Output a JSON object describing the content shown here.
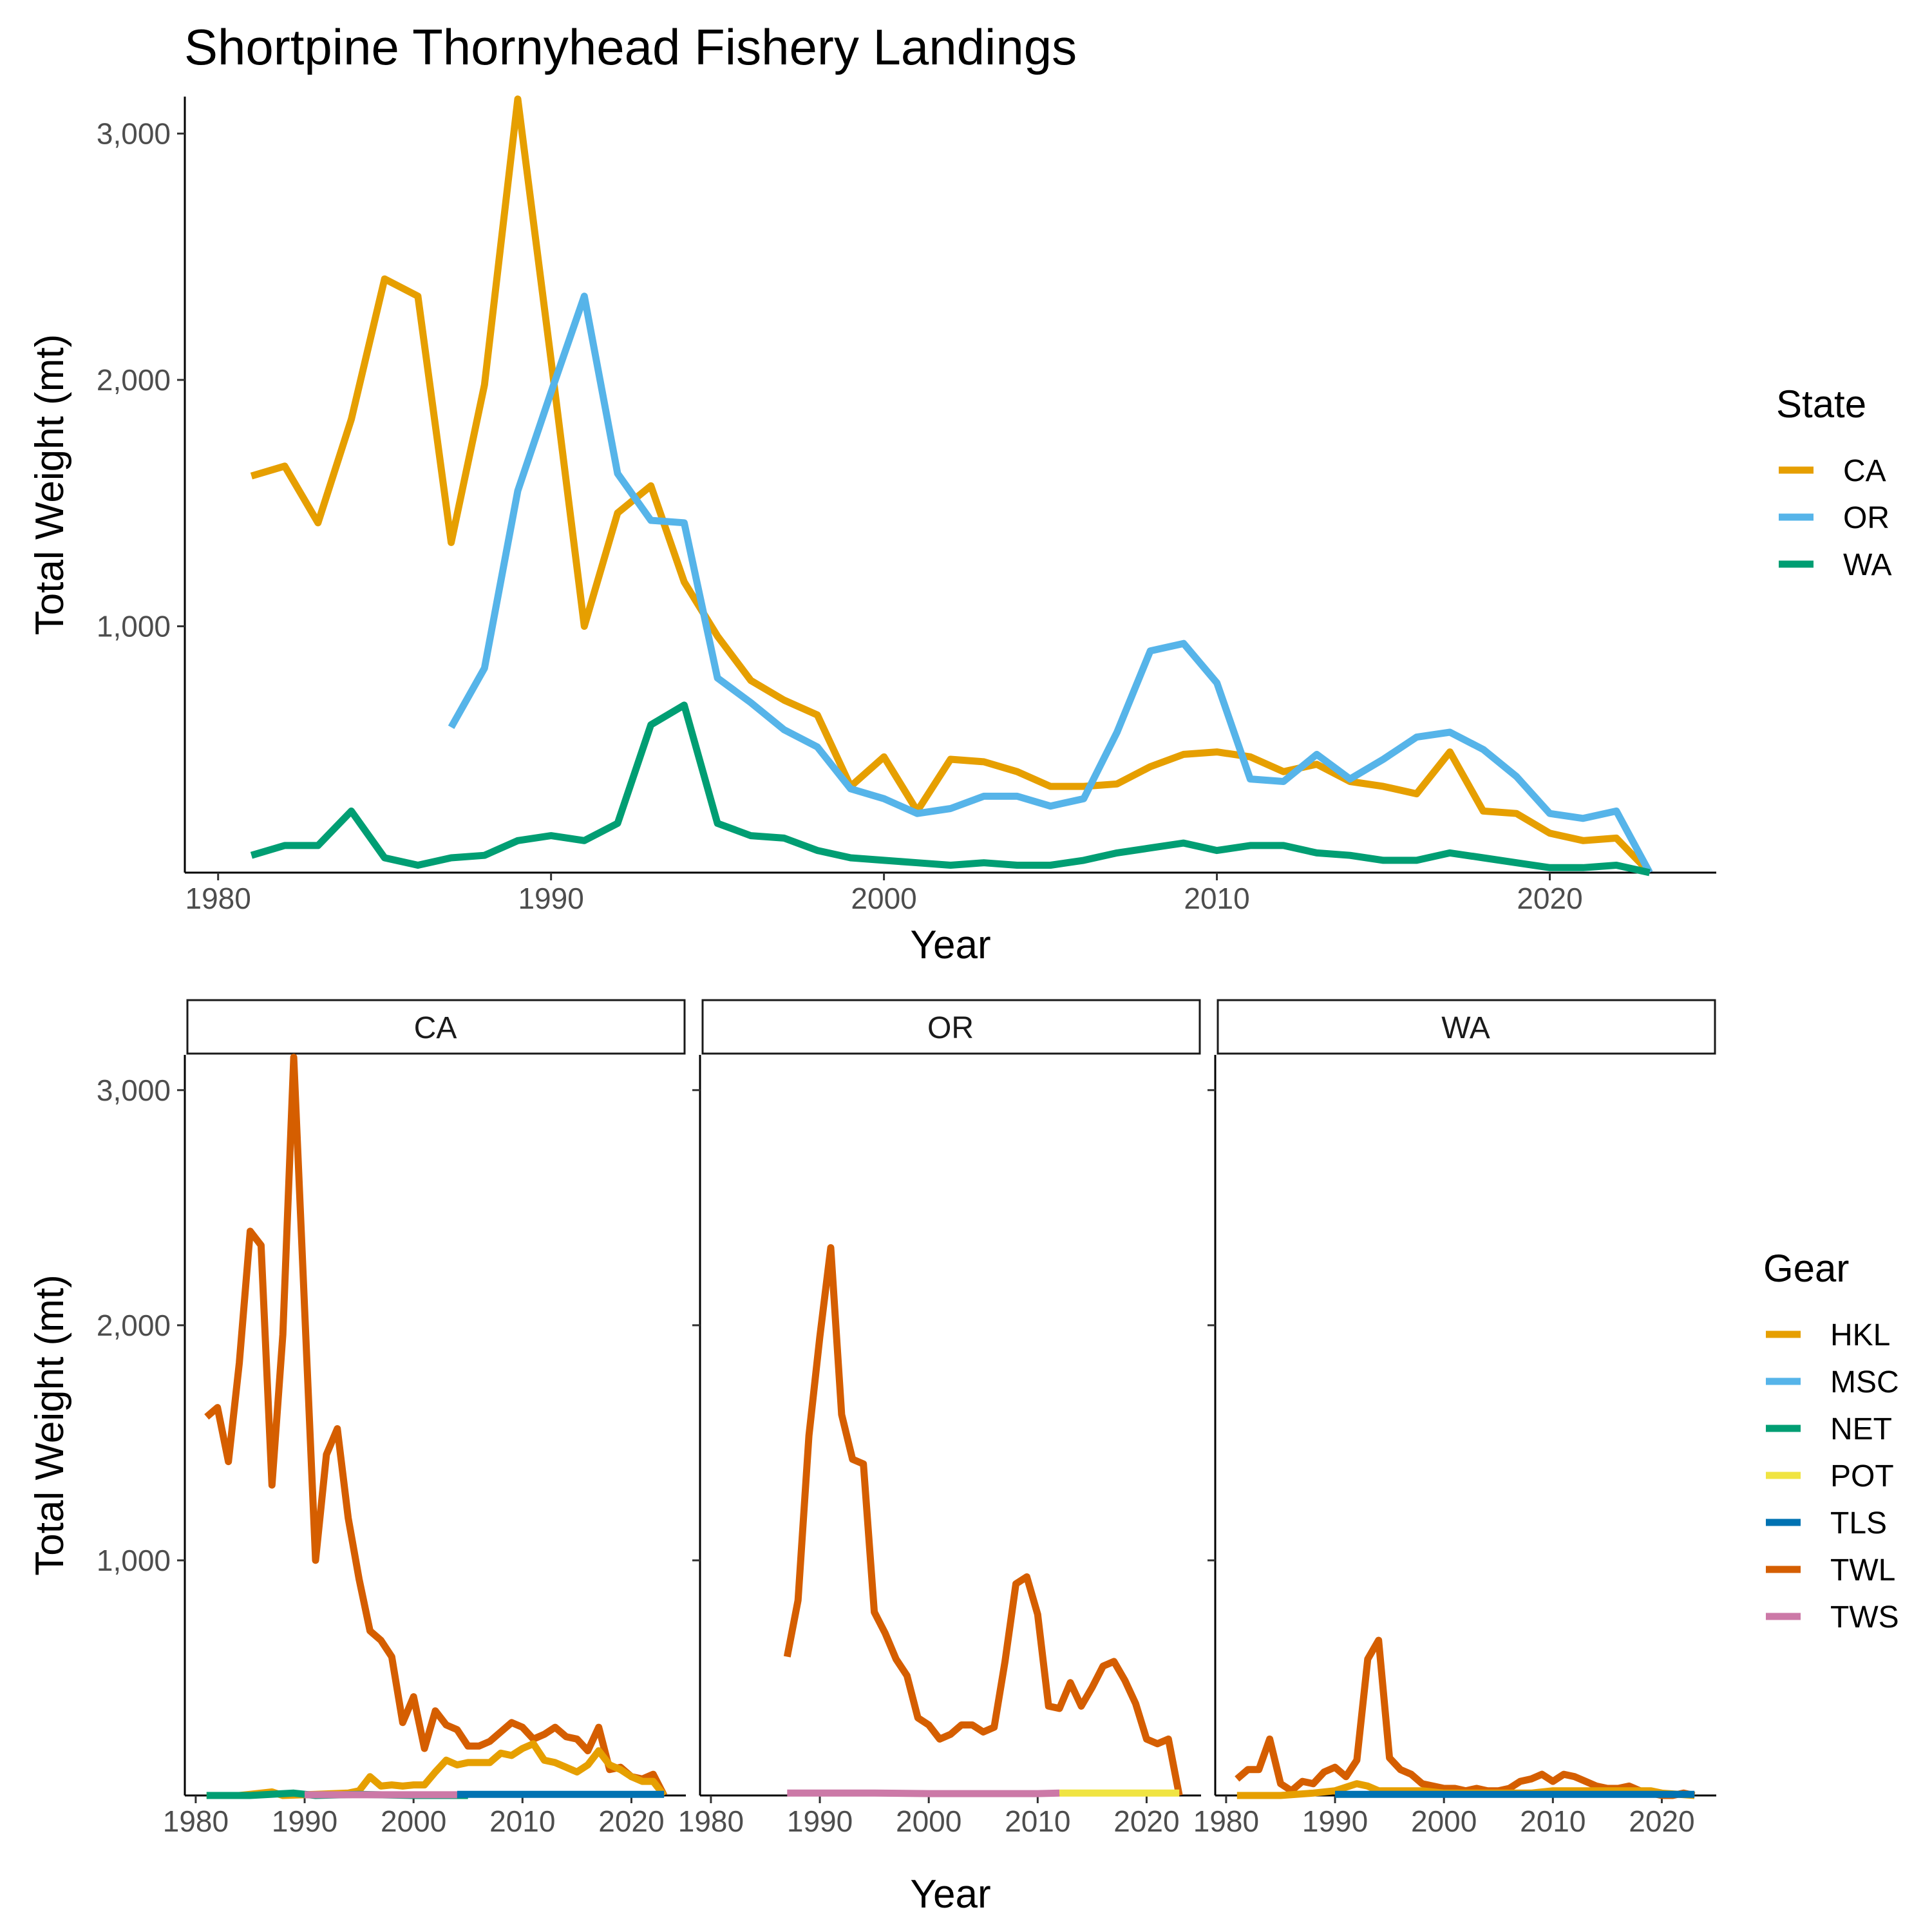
{
  "title": "Shortpine Thornyhead Fishery Landings",
  "colors": {
    "CA": "#E69F00",
    "OR": "#56B4E9",
    "WA": "#009E73",
    "HKL": "#E69F00",
    "MSC": "#56B4E9",
    "NET": "#009E73",
    "POT": "#F0E442",
    "TLS": "#0072B2",
    "TWL": "#D55E00",
    "TWS": "#CC79A7"
  },
  "chart_data": [
    {
      "type": "line",
      "title": "Shortpine Thornyhead Fishery Landings",
      "xlabel": "Year",
      "ylabel": "Total Weight (mt)",
      "xlim": [
        1979,
        2025
      ],
      "ylim": [
        0,
        3150
      ],
      "x_ticks": [
        1980,
        1990,
        2000,
        2010,
        2020
      ],
      "x_tick_labels": [
        "1980",
        "1990",
        "2000",
        "2010",
        "2020"
      ],
      "y_ticks": [
        1000,
        2000,
        3000
      ],
      "y_tick_labels": [
        "1,000",
        "2,000",
        "3,000"
      ],
      "grid": false,
      "legend": {
        "title": "State",
        "position": "right",
        "entries": [
          "CA",
          "OR",
          "WA"
        ]
      },
      "series": [
        {
          "name": "CA",
          "x": [
            1981,
            1982,
            1983,
            1984,
            1985,
            1986,
            1987,
            1988,
            1989,
            1990,
            1991,
            1992,
            1993,
            1994,
            1995,
            1996,
            1997,
            1998,
            1999,
            2000,
            2001,
            2002,
            2003,
            2004,
            2005,
            2006,
            2007,
            2008,
            2009,
            2010,
            2011,
            2012,
            2013,
            2014,
            2015,
            2016,
            2017,
            2018,
            2019,
            2020,
            2021,
            2022,
            2023
          ],
          "y": [
            1610,
            1650,
            1420,
            1840,
            2410,
            2340,
            1340,
            1980,
            3140,
            2080,
            1000,
            1460,
            1570,
            1180,
            960,
            780,
            700,
            640,
            350,
            470,
            250,
            460,
            450,
            410,
            350,
            350,
            360,
            430,
            480,
            490,
            470,
            410,
            440,
            370,
            350,
            320,
            490,
            250,
            240,
            160,
            130,
            140,
            0
          ]
        },
        {
          "name": "OR",
          "x": [
            1987,
            1988,
            1989,
            1990,
            1991,
            1992,
            1993,
            1994,
            1995,
            1996,
            1997,
            1998,
            1999,
            2000,
            2001,
            2002,
            2003,
            2004,
            2005,
            2006,
            2007,
            2008,
            2009,
            2010,
            2011,
            2012,
            2013,
            2014,
            2015,
            2016,
            2017,
            2018,
            2019,
            2020,
            2021,
            2022,
            2023
          ],
          "y": [
            590,
            830,
            1550,
            1950,
            2340,
            1620,
            1430,
            1420,
            790,
            690,
            580,
            510,
            340,
            300,
            240,
            260,
            310,
            310,
            270,
            300,
            570,
            900,
            930,
            770,
            380,
            370,
            480,
            380,
            460,
            550,
            570,
            500,
            390,
            240,
            220,
            250,
            0
          ]
        },
        {
          "name": "WA",
          "x": [
            1981,
            1982,
            1983,
            1984,
            1985,
            1986,
            1987,
            1988,
            1989,
            1990,
            1991,
            1992,
            1993,
            1994,
            1995,
            1996,
            1997,
            1998,
            1999,
            2000,
            2001,
            2002,
            2003,
            2004,
            2005,
            2006,
            2007,
            2008,
            2009,
            2010,
            2011,
            2012,
            2013,
            2014,
            2015,
            2016,
            2017,
            2018,
            2019,
            2020,
            2021,
            2022,
            2023
          ],
          "y": [
            70,
            110,
            110,
            250,
            60,
            30,
            60,
            70,
            130,
            150,
            130,
            200,
            600,
            680,
            200,
            150,
            140,
            90,
            60,
            50,
            40,
            30,
            40,
            30,
            30,
            50,
            80,
            100,
            120,
            90,
            110,
            110,
            80,
            70,
            50,
            50,
            80,
            60,
            40,
            20,
            20,
            30,
            0
          ]
        }
      ]
    },
    {
      "type": "line",
      "xlabel": "Year",
      "ylabel": "Total Weight (mt)",
      "xlim": [
        1979,
        2025
      ],
      "ylim": [
        0,
        3150
      ],
      "x_ticks": [
        1980,
        1990,
        2000,
        2010,
        2020
      ],
      "x_tick_labels": [
        "1980",
        "1990",
        "2000",
        "2010",
        "2020"
      ],
      "y_ticks": [
        1000,
        2000,
        3000
      ],
      "y_tick_labels": [
        "1,000",
        "2,000",
        "3,000"
      ],
      "grid": false,
      "legend": {
        "title": "Gear",
        "position": "right",
        "entries": [
          "HKL",
          "MSC",
          "NET",
          "POT",
          "TLS",
          "TWL",
          "TWS"
        ]
      },
      "facets": [
        {
          "label": "CA",
          "series": [
            {
              "name": "TWL",
              "x": [
                1981,
                1982,
                1983,
                1984,
                1985,
                1986,
                1987,
                1988,
                1989,
                1990,
                1991,
                1992,
                1993,
                1994,
                1995,
                1996,
                1997,
                1998,
                1999,
                2000,
                2001,
                2002,
                2003,
                2004,
                2005,
                2006,
                2007,
                2008,
                2009,
                2010,
                2011,
                2012,
                2013,
                2014,
                2015,
                2016,
                2017,
                2018,
                2019,
                2020,
                2021,
                2022,
                2023
              ],
              "y": [
                1610,
                1650,
                1420,
                1840,
                2400,
                2340,
                1320,
                1960,
                3140,
                2070,
                1000,
                1450,
                1560,
                1180,
                920,
                700,
                660,
                590,
                310,
                420,
                200,
                360,
                300,
                280,
                210,
                210,
                230,
                270,
                310,
                290,
                240,
                260,
                290,
                250,
                240,
                190,
                290,
                110,
                120,
                80,
                70,
                90,
                0
              ]
            },
            {
              "name": "HKL",
              "x": [
                1981,
                1984,
                1987,
                1988,
                1991,
                1994,
                1995,
                1996,
                1997,
                1998,
                1999,
                2000,
                2001,
                2002,
                2003,
                2004,
                2005,
                2006,
                2007,
                2008,
                2009,
                2010,
                2011,
                2012,
                2013,
                2014,
                2015,
                2016,
                2017,
                2018,
                2019,
                2020,
                2021,
                2022,
                2023
              ],
              "y": [
                0,
                0,
                15,
                0,
                5,
                10,
                20,
                80,
                40,
                45,
                40,
                45,
                45,
                100,
                150,
                130,
                140,
                140,
                140,
                180,
                170,
                200,
                220,
                150,
                140,
                120,
                100,
                130,
                190,
                130,
                110,
                80,
                60,
                60,
                0
              ]
            },
            {
              "name": "NET",
              "x": [
                1981,
                1985,
                1989,
                1991,
                1995,
                2000,
                2005
              ],
              "y": [
                0,
                0,
                10,
                0,
                5,
                0,
                0
              ]
            },
            {
              "name": "TLS",
              "x": [
                2004,
                2010,
                2015,
                2020,
                2023
              ],
              "y": [
                5,
                5,
                5,
                5,
                5
              ]
            },
            {
              "name": "TWS",
              "x": [
                1990,
                2000,
                2004
              ],
              "y": [
                3,
                3,
                3
              ]
            }
          ]
        },
        {
          "label": "OR",
          "series": [
            {
              "name": "TWL",
              "x": [
                1987,
                1988,
                1989,
                1990,
                1991,
                1992,
                1993,
                1994,
                1995,
                1996,
                1997,
                1998,
                1999,
                2000,
                2001,
                2002,
                2003,
                2004,
                2005,
                2006,
                2007,
                2008,
                2009,
                2010,
                2011,
                2012,
                2013,
                2014,
                2015,
                2016,
                2017,
                2018,
                2019,
                2020,
                2021,
                2022,
                2023
              ],
              "y": [
                590,
                830,
                1530,
                1950,
                2330,
                1620,
                1430,
                1410,
                780,
                690,
                580,
                510,
                330,
                300,
                240,
                260,
                300,
                300,
                270,
                290,
                570,
                900,
                930,
                770,
                380,
                370,
                480,
                380,
                460,
                550,
                570,
                490,
                390,
                240,
                220,
                240,
                0
              ]
            },
            {
              "name": "TWS",
              "x": [
                1987,
                1995,
                2000,
                2005,
                2010,
                2012
              ],
              "y": [
                10,
                10,
                8,
                8,
                8,
                10
              ]
            },
            {
              "name": "POT",
              "x": [
                2012,
                2015,
                2020,
                2023
              ],
              "y": [
                10,
                10,
                10,
                10
              ]
            }
          ]
        },
        {
          "label": "WA",
          "series": [
            {
              "name": "TWL",
              "x": [
                1981,
                1982,
                1983,
                1984,
                1985,
                1986,
                1987,
                1988,
                1989,
                1990,
                1991,
                1992,
                1993,
                1994,
                1995,
                1996,
                1997,
                1998,
                1999,
                2000,
                2001,
                2002,
                2003,
                2004,
                2005,
                2006,
                2007,
                2008,
                2009,
                2010,
                2011,
                2012,
                2013,
                2014,
                2015,
                2016,
                2017,
                2018,
                2019,
                2020,
                2021,
                2022,
                2023
              ],
              "y": [
                70,
                110,
                110,
                240,
                50,
                20,
                60,
                50,
                100,
                120,
                80,
                150,
                580,
                660,
                160,
                110,
                90,
                50,
                40,
                30,
                30,
                20,
                30,
                20,
                20,
                30,
                60,
                70,
                90,
                60,
                90,
                80,
                60,
                40,
                30,
                30,
                40,
                20,
                10,
                0,
                0,
                10,
                0
              ]
            },
            {
              "name": "HKL",
              "x": [
                1981,
                1985,
                1988,
                1990,
                1992,
                1993,
                1994,
                1995,
                1998,
                2000,
                2005,
                2008,
                2010,
                2014,
                2017,
                2019,
                2020,
                2023
              ],
              "y": [
                0,
                0,
                10,
                20,
                50,
                40,
                20,
                20,
                20,
                10,
                10,
                10,
                20,
                20,
                20,
                20,
                10,
                0
              ]
            },
            {
              "name": "TLS",
              "x": [
                1990,
                1995,
                2000,
                2005,
                2010,
                2015,
                2020,
                2023
              ],
              "y": [
                5,
                5,
                5,
                5,
                5,
                5,
                5,
                5
              ]
            }
          ]
        }
      ]
    }
  ]
}
